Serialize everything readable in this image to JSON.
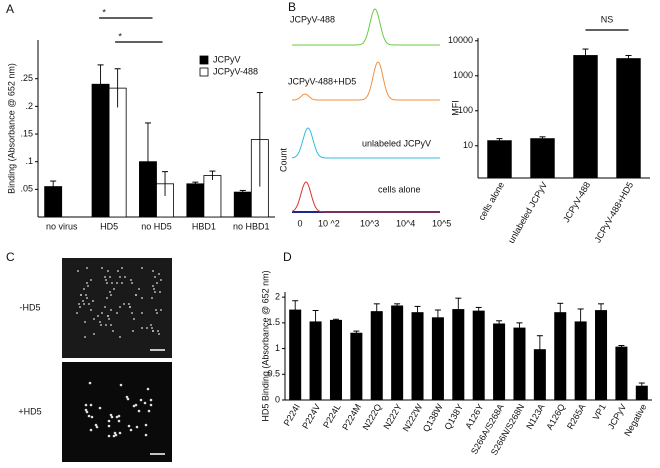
{
  "chart_data": [
    {
      "type": "bar",
      "panel": "A",
      "ylabel": "Binding (Absorbance @ 652 nm)",
      "categories": [
        "no virus",
        "HD5",
        "no HD5",
        "HBD1",
        "no HBD1"
      ],
      "series": [
        {
          "name": "JCPyV",
          "color": "#000000",
          "values": [
            0.055,
            0.24,
            0.1,
            0.06,
            0.045
          ],
          "errors": [
            0.01,
            0.035,
            0.07,
            0.003,
            0.003
          ]
        },
        {
          "name": "JCPyV-488",
          "color": "#ffffff",
          "values": [
            null,
            0.233,
            0.06,
            0.075,
            0.14
          ],
          "errors": [
            null,
            0.035,
            0.022,
            0.008,
            0.085
          ]
        }
      ],
      "ylim": [
        0,
        0.32
      ],
      "yticks": [
        {
          "value": 0.05,
          "label": ".05"
        },
        {
          "value": 0.1,
          "label": ".1"
        },
        {
          "value": 0.15,
          "label": ".15"
        },
        {
          "value": 0.2,
          "label": ".2"
        },
        {
          "value": 0.25,
          "label": ".25"
        }
      ],
      "legend": "upper right",
      "annotations": [
        "*",
        "*"
      ]
    },
    {
      "type": "flow",
      "panel": "B",
      "ylabel": "Count",
      "curves": [
        {
          "name": "JCPyV-488",
          "color": "#66cc44"
        },
        {
          "name": "JCPyV-488+HD5",
          "color": "#f09040"
        },
        {
          "name": "unlabeled JCPyV",
          "color": "#33bbdd"
        },
        {
          "name": "cells alone",
          "color": "#dd3333"
        }
      ],
      "xtick_labels": [
        "0",
        "10 ^2",
        "10^3",
        "10^4",
        "10^5"
      ]
    },
    {
      "type": "bar",
      "ylabel": "MFI",
      "log_y": true,
      "categories": [
        "cells alone",
        "unlabeled JCPyV",
        "JCPyV-488",
        "JCPyV-488+HD5"
      ],
      "series": [
        {
          "color": "#000000",
          "values": [
            14,
            16,
            3800,
            3100
          ],
          "errors": [
            2,
            2,
            2000,
            700
          ]
        }
      ],
      "ylim": [
        1.2,
        12000
      ],
      "yticks": [
        10,
        100,
        1000,
        10000
      ],
      "annotations": [
        "NS"
      ]
    },
    {
      "type": "image",
      "panel": "C",
      "labels": [
        "-HD5",
        "+HD5"
      ]
    },
    {
      "type": "bar",
      "panel": "D",
      "ylabel": "HD5 Binding (Absorbance @ 652 nm)",
      "categories": [
        "P224I",
        "P224V",
        "P224L",
        "P224M",
        "N222Q",
        "N222Y",
        "N222W",
        "Q138W",
        "Q138Y",
        "A126Y",
        "S266A/S268A",
        "S266N/S268N",
        "N123A",
        "A126Q",
        "R265A",
        "VP1",
        "JCPyV",
        "Negative"
      ],
      "series": [
        {
          "color": "#000000",
          "values": [
            1.75,
            1.52,
            1.55,
            1.3,
            1.72,
            1.83,
            1.7,
            1.6,
            1.76,
            1.73,
            1.48,
            1.4,
            0.98,
            1.7,
            1.52,
            1.74,
            1.03,
            0.27
          ],
          "errors": [
            0.18,
            0.22,
            0.02,
            0.04,
            0.15,
            0.04,
            0.12,
            0.15,
            0.22,
            0.07,
            0.06,
            0.1,
            0.27,
            0.18,
            0.25,
            0.13,
            0.03,
            0.06
          ]
        }
      ],
      "ylim": [
        0,
        2.1
      ],
      "yticks": [
        0,
        0.5,
        1,
        1.5,
        2
      ]
    }
  ]
}
